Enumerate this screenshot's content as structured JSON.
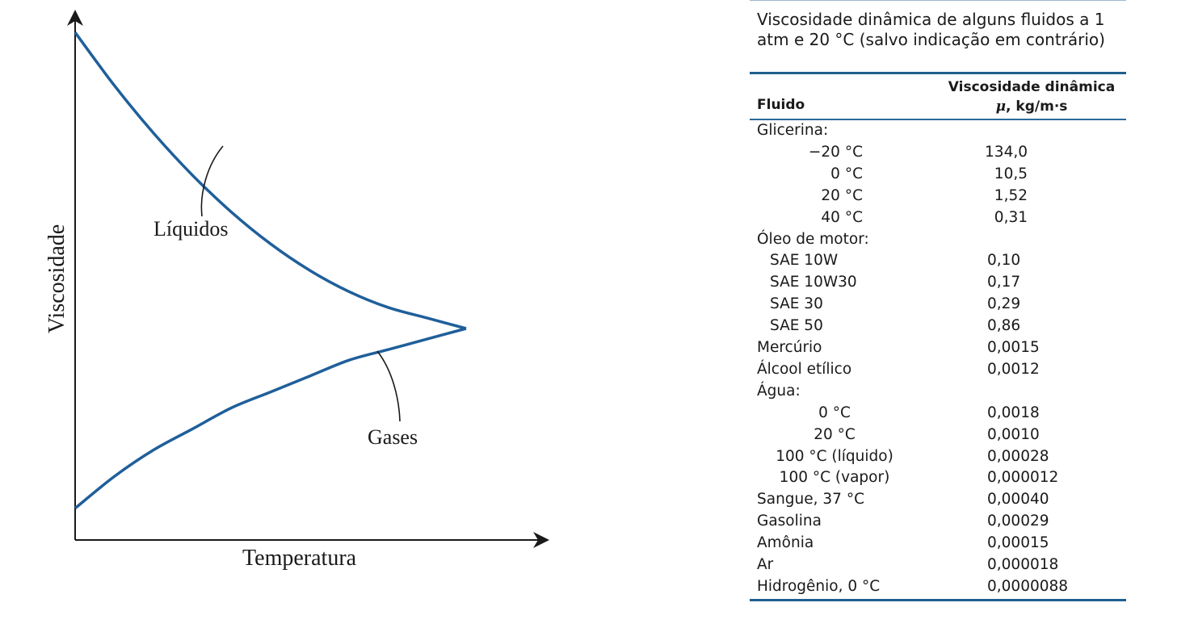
{
  "chart_data": {
    "type": "line",
    "xlabel": "Temperatura",
    "ylabel": "Viscosidade",
    "xlim": [
      0,
      1
    ],
    "ylim": [
      0,
      1
    ],
    "grid": false,
    "legend": "none",
    "series": [
      {
        "name": "Líquidos",
        "color": "#1f5f9a",
        "x": [
          0.0,
          0.1,
          0.2,
          0.3,
          0.4,
          0.5,
          0.6,
          0.7,
          0.8,
          0.9,
          1.0
        ],
        "y": [
          0.96,
          0.86,
          0.77,
          0.69,
          0.62,
          0.56,
          0.51,
          0.47,
          0.44,
          0.42,
          0.4
        ]
      },
      {
        "name": "Gases",
        "color": "#1f5f9a",
        "x": [
          0.0,
          0.1,
          0.2,
          0.3,
          0.4,
          0.5,
          0.6,
          0.7,
          0.8,
          0.9,
          1.0
        ],
        "y": [
          0.06,
          0.12,
          0.17,
          0.21,
          0.25,
          0.28,
          0.31,
          0.34,
          0.36,
          0.38,
          0.4
        ]
      }
    ]
  },
  "annotations": {
    "liquids_label": "Líquidos",
    "gases_label": "Gases"
  },
  "table": {
    "caption": "Viscosidade dinâmica de alguns fluidos a 1 atm e 20 °C (salvo indicação em contrário)",
    "col_fluid": "Fluido",
    "col_visc_line1": "Viscosidade dinâmica",
    "col_visc_mu": "μ",
    "col_visc_unit": ", kg/m·s",
    "accent_color": "#1f5f8f",
    "rows": [
      {
        "name": "Glicerina:",
        "value": "",
        "kind": "group"
      },
      {
        "name": "−20 °C",
        "value": "134,0",
        "kind": "sub-temp"
      },
      {
        "name": "0 °C",
        "value": "10,5",
        "kind": "sub-temp"
      },
      {
        "name": "20 °C",
        "value": "1,52",
        "kind": "sub-temp"
      },
      {
        "name": "40 °C",
        "value": "0,31",
        "kind": "sub-temp"
      },
      {
        "name": "Óleo de motor:",
        "value": "",
        "kind": "group"
      },
      {
        "name": "SAE 10W",
        "value": "0,10",
        "kind": "sub"
      },
      {
        "name": "SAE 10W30",
        "value": "0,17",
        "kind": "sub"
      },
      {
        "name": "SAE 30",
        "value": "0,29",
        "kind": "sub"
      },
      {
        "name": "SAE 50",
        "value": "0,86",
        "kind": "sub"
      },
      {
        "name": "Mercúrio",
        "value": "0,0015",
        "kind": "top"
      },
      {
        "name": "Álcool etílico",
        "value": "0,0012",
        "kind": "top"
      },
      {
        "name": "Água:",
        "value": "",
        "kind": "group"
      },
      {
        "name": "0 °C",
        "value": "0,0018",
        "kind": "sub-water"
      },
      {
        "name": "20 °C",
        "value": "0,0010",
        "kind": "sub-water"
      },
      {
        "name": "100 °C (líquido)",
        "value": "0,00028",
        "kind": "sub-water"
      },
      {
        "name": "100 °C (vapor)",
        "value": "0,000012",
        "kind": "sub-water"
      },
      {
        "name": "Sangue, 37 °C",
        "value": "0,00040",
        "kind": "top"
      },
      {
        "name": "Gasolina",
        "value": "0,00029",
        "kind": "top"
      },
      {
        "name": "Amônia",
        "value": "0,00015",
        "kind": "top"
      },
      {
        "name": "Ar",
        "value": "0,000018",
        "kind": "top"
      },
      {
        "name": "Hidrogênio, 0 °C",
        "value": "0,0000088",
        "kind": "top"
      }
    ]
  }
}
